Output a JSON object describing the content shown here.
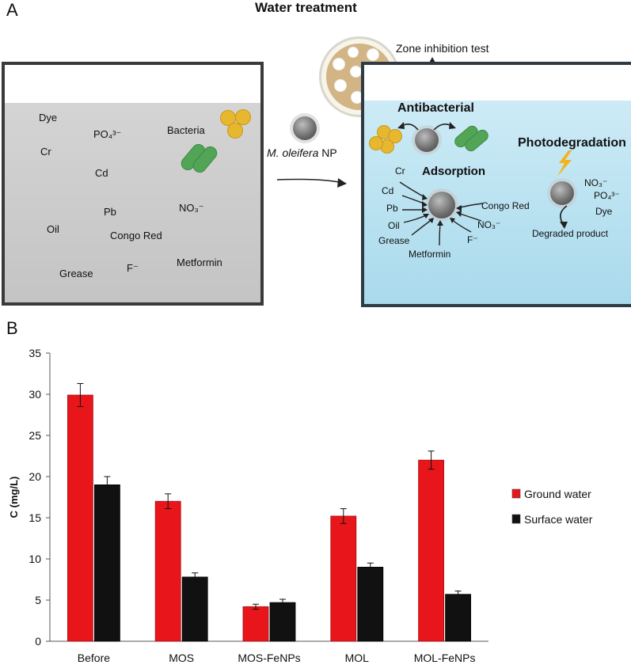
{
  "panel_a": {
    "letter": "A",
    "title": "Water treatment",
    "left_labels": {
      "dye": "Dye",
      "po4": "PO₄³⁻",
      "bacteria": "Bacteria",
      "cr": "Cr",
      "cd": "Cd",
      "pb": "Pb",
      "no3": "NO₃⁻",
      "oil": "Oil",
      "congo_red": "Congo Red",
      "metformin": "Metformin",
      "grease": "Grease",
      "f": "F⁻"
    },
    "arrow_label_italic": "M. oleifera",
    "arrow_label_rest": "NP",
    "zone_test": "Zone inhibition test",
    "antibacterial": "Antibacterial",
    "adsorption": "Adsorption",
    "photodegradation": "Photodegradation",
    "right_labels": {
      "cr": "Cr",
      "cd": "Cd",
      "pb": "Pb",
      "oil": "Oil",
      "grease": "Grease",
      "metformin": "Metformin",
      "f": "F⁻",
      "no3": "NO₃⁻",
      "congo_red": "Congo Red",
      "photo_no3": "NO₃⁻",
      "photo_po4": "PO₄³⁻",
      "photo_dye": "Dye",
      "degraded": "Degraded product"
    }
  },
  "panel_b": {
    "letter": "B"
  },
  "chart_data": {
    "type": "bar",
    "title": "",
    "xlabel": "",
    "ylabel": "C (mg/L)",
    "ylim": [
      0,
      35
    ],
    "yticks": [
      0,
      5,
      10,
      15,
      20,
      25,
      30,
      35
    ],
    "categories": [
      "Before",
      "MOS",
      "MOS-FeNPs",
      "MOL",
      "MOL-FeNPs"
    ],
    "series": [
      {
        "name": "Ground water",
        "color": "#e8161a",
        "values": [
          29.9,
          17.0,
          4.2,
          15.2,
          22.0
        ],
        "errors": [
          1.4,
          0.9,
          0.3,
          0.9,
          1.1
        ]
      },
      {
        "name": "Surface water",
        "color": "#111111",
        "values": [
          19.0,
          7.8,
          4.7,
          9.0,
          5.7
        ],
        "errors": [
          1.0,
          0.5,
          0.4,
          0.5,
          0.4
        ]
      }
    ],
    "grid": false,
    "legend_position": "right"
  }
}
